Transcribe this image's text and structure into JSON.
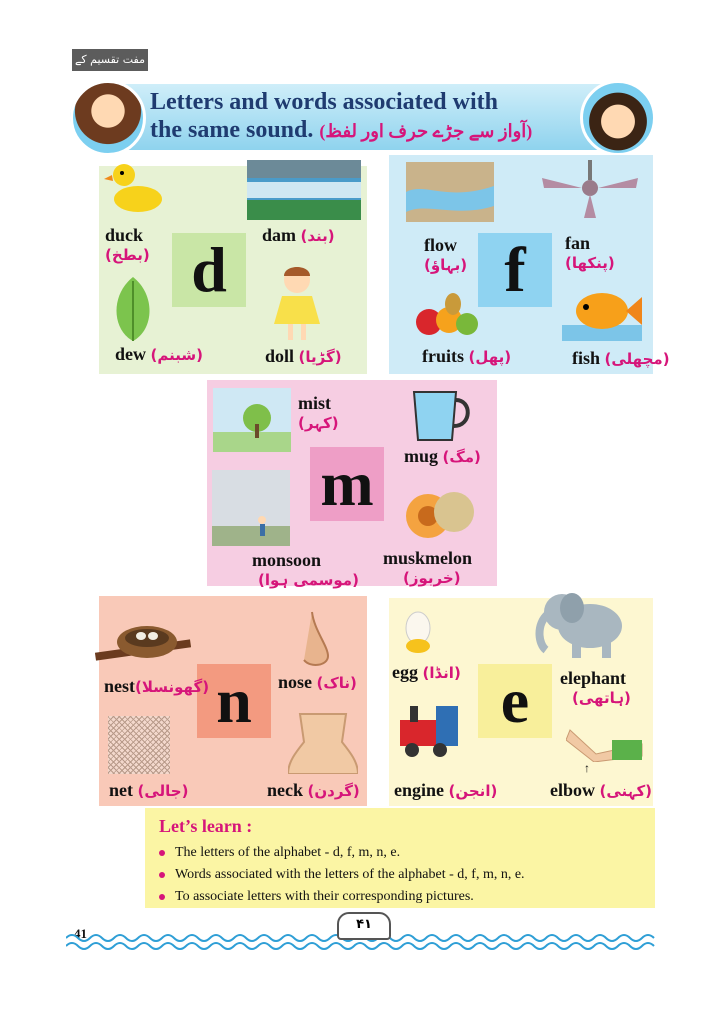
{
  "header": {
    "stamp": "مفت تقسیم کے لیے",
    "title_line1": "Letters and words associated with",
    "title_line2": "the same sound.",
    "title_urdu": "(آواز سے جڑے حرف اور لفظ)"
  },
  "panels": {
    "d": {
      "letter": "d",
      "color": "#e7f2d4",
      "box": "#c9e6a6",
      "words": [
        {
          "en": "duck",
          "ur": "(بطخ)"
        },
        {
          "en": "dam",
          "ur": "(بند)"
        },
        {
          "en": "dew",
          "ur": "(شبنم)"
        },
        {
          "en": "doll",
          "ur": "(گڑیا)"
        }
      ]
    },
    "f": {
      "letter": "f",
      "color": "#cfebf7",
      "box": "#8fd3f1",
      "words": [
        {
          "en": "flow",
          "ur": "(بہاؤ)"
        },
        {
          "en": "fan",
          "ur": "(پنکھا)"
        },
        {
          "en": "fruits",
          "ur": "(پھل)"
        },
        {
          "en": "fish",
          "ur": "(مچھلی)"
        }
      ]
    },
    "m": {
      "letter": "m",
      "color": "#f6cde2",
      "box": "#ee9ec6",
      "words": [
        {
          "en": "mist",
          "ur": "(کہر)"
        },
        {
          "en": "mug",
          "ur": "(مگ)"
        },
        {
          "en": "monsoon",
          "ur": "(موسمی ہوا)"
        },
        {
          "en": "muskmelon",
          "ur": "(خربوز)"
        }
      ]
    },
    "n": {
      "letter": "n",
      "color": "#f9c9b8",
      "box": "#f39a80",
      "words": [
        {
          "en": "nest",
          "ur": "(گھونسلا)"
        },
        {
          "en": "nose",
          "ur": "(ناک)"
        },
        {
          "en": "net",
          "ur": "(جالی)"
        },
        {
          "en": "neck",
          "ur": "(گردن)"
        }
      ]
    },
    "e": {
      "letter": "e",
      "color": "#fdf7d1",
      "box": "#f8ef9b",
      "words": [
        {
          "en": "egg",
          "ur": "(انڈا)"
        },
        {
          "en": "elephant",
          "ur": "(ہاتھی)"
        },
        {
          "en": "engine",
          "ur": "(انجن)"
        },
        {
          "en": "elbow",
          "ur": "(کہنی)"
        }
      ]
    }
  },
  "learn": {
    "title": "Let’s learn :",
    "items": [
      "The letters of the alphabet - d, f, m, n, e.",
      "Words associated with the letters of the alphabet - d, f, m, n, e.",
      "To associate letters with their corresponding pictures."
    ]
  },
  "footer": {
    "page_number": "41",
    "urdu_page_number": "۴۱"
  }
}
